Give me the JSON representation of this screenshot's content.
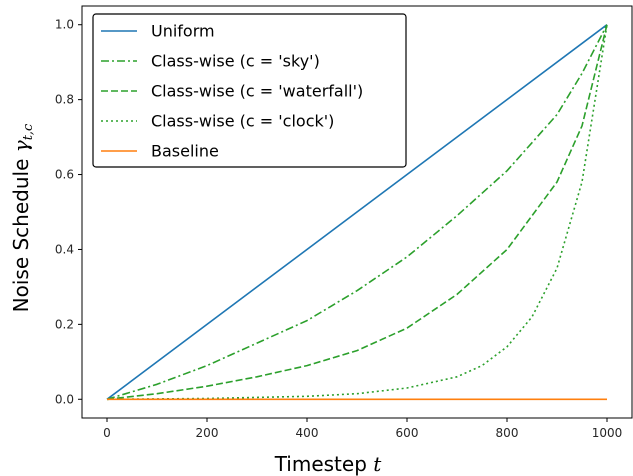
{
  "chart_data": {
    "type": "line",
    "xlabel": "Timestep",
    "xlabel_var": "t",
    "ylabel": "Noise Schedule",
    "ylabel_var": "γ",
    "ylabel_sub": "t,c",
    "xlim": [
      -50,
      1050
    ],
    "ylim": [
      -0.05,
      1.05
    ],
    "xticks": [
      0,
      200,
      400,
      600,
      800,
      1000
    ],
    "yticks": [
      0.0,
      0.2,
      0.4,
      0.6,
      0.8,
      1.0
    ],
    "xtick_labels": [
      "0",
      "200",
      "400",
      "600",
      "800",
      "1000"
    ],
    "ytick_labels": [
      "0.0",
      "0.2",
      "0.4",
      "0.6",
      "0.8",
      "1.0"
    ],
    "grid": false,
    "legend_position": "upper-left",
    "series": [
      {
        "name": "Uniform",
        "color": "#1f77b4",
        "style": "solid",
        "x": [
          0,
          1000
        ],
        "y": [
          0,
          1
        ]
      },
      {
        "name": "Class-wise (c = 'sky')",
        "color": "#2ca02c",
        "style": "dashdot",
        "x": [
          0,
          100,
          200,
          300,
          400,
          500,
          600,
          700,
          800,
          900,
          950,
          1000
        ],
        "y": [
          0,
          0.04,
          0.09,
          0.15,
          0.21,
          0.29,
          0.38,
          0.49,
          0.61,
          0.76,
          0.87,
          1.0
        ]
      },
      {
        "name": "Class-wise (c = 'waterfall')",
        "color": "#2ca02c",
        "style": "dashed",
        "x": [
          0,
          100,
          200,
          300,
          400,
          500,
          600,
          700,
          800,
          900,
          950,
          1000
        ],
        "y": [
          0,
          0.015,
          0.035,
          0.06,
          0.09,
          0.13,
          0.19,
          0.28,
          0.4,
          0.58,
          0.73,
          1.0
        ]
      },
      {
        "name": "Class-wise (c = 'clock')",
        "color": "#2ca02c",
        "style": "dotted",
        "x": [
          0,
          200,
          400,
          500,
          600,
          700,
          750,
          800,
          850,
          900,
          950,
          1000
        ],
        "y": [
          0,
          0.002,
          0.008,
          0.015,
          0.03,
          0.06,
          0.09,
          0.14,
          0.22,
          0.35,
          0.58,
          1.0
        ]
      },
      {
        "name": "Baseline",
        "color": "#ff7f0e",
        "style": "solid",
        "x": [
          0,
          1000
        ],
        "y": [
          0,
          0
        ]
      }
    ]
  }
}
